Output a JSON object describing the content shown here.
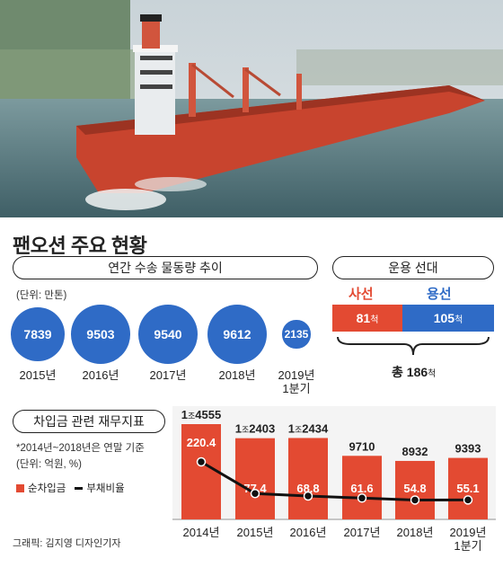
{
  "title": "팬오션 주요 현황",
  "volume": {
    "header": "연간 수송 물동량 추이",
    "unit": "(단위: 만톤)",
    "items": [
      {
        "year": "2015년",
        "value": 7839
      },
      {
        "year": "2016년",
        "value": 9503
      },
      {
        "year": "2017년",
        "value": 9540
      },
      {
        "year": "2018년",
        "value": 9612
      },
      {
        "year": "2019년\n1분기",
        "value": 2135
      }
    ]
  },
  "fleet": {
    "header": "운용 선대",
    "owned_label": "사선",
    "chartered_label": "용선",
    "owned": 81,
    "chartered": 105,
    "unit": "척",
    "total_prefix": "총",
    "total": 186,
    "colors": {
      "owned": "#e34a32",
      "chartered": "#2f6bc6"
    }
  },
  "finance": {
    "header": "차입금 관련 재무지표",
    "note1": "*2014년~2018년은 연말 기준",
    "note2": "(단위: 억원, %)",
    "legend_debt": "순차입금",
    "legend_ratio": "부채비율"
  },
  "chart_data": {
    "type": "bar",
    "categories": [
      "2014년",
      "2015년",
      "2016년",
      "2017년",
      "2018년",
      "2019년\n1분기"
    ],
    "series": [
      {
        "name": "순차입금",
        "values": [
          14555,
          12403,
          12434,
          9710,
          8932,
          9393
        ],
        "labels": [
          "1조4555",
          "1조2403",
          "1조2434",
          "9710",
          "8932",
          "9393"
        ]
      },
      {
        "name": "부채비율",
        "values": [
          220.4,
          77.4,
          68.8,
          61.6,
          54.8,
          55.1
        ]
      }
    ],
    "colors": {
      "bar": "#e34a32",
      "line": "#111111"
    }
  },
  "credit": "그래픽: 김지영 디자인기자"
}
